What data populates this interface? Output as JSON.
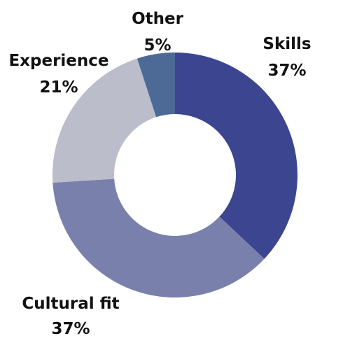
{
  "chart_data": {
    "type": "pie",
    "variant": "donut",
    "title": "",
    "slices": [
      {
        "label": "Skills",
        "value": 37,
        "value_label": "37%",
        "color": "#3b4590"
      },
      {
        "label": "Cultural fit",
        "value": 37,
        "value_label": "37%",
        "color": "#7a80ac"
      },
      {
        "label": "Experience",
        "value": 21,
        "value_label": "21%",
        "color": "#bbbdcb"
      },
      {
        "label": "Other",
        "value": 5,
        "value_label": "5%",
        "color": "#4d6a97"
      }
    ],
    "start": "12 o'clock, clockwise",
    "legend": "none"
  }
}
